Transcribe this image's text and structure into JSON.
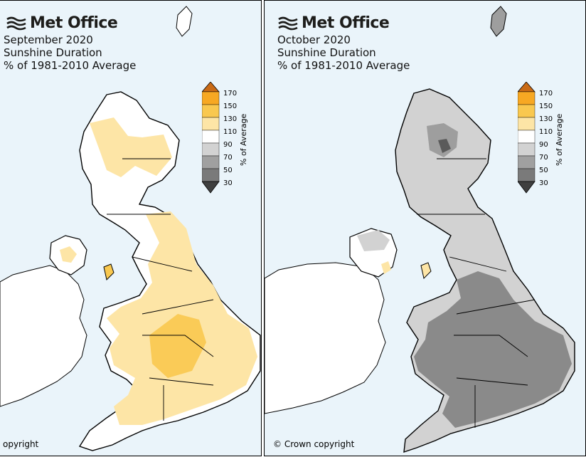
{
  "brand": "Met Office",
  "colors": {
    "sea": "#eaf4fa",
    "land_left_base": "#ffffff",
    "land_right_base": "#cfcfcf",
    "outline": "#000000",
    "anomaly_low_1": "#fdedb9",
    "anomaly_low_2": "#fbd78a",
    "anomaly_high_1": "#9e9e9e",
    "anomaly_high_2": "#6e6e6e"
  },
  "maps": [
    {
      "id": "left",
      "title": "September 2020",
      "subtitle": "Sunshine Duration",
      "caption": "% of 1981-2010 Average",
      "copyright": "opyright"
    },
    {
      "id": "right",
      "title": "October 2020",
      "subtitle": "Sunshine Duration",
      "caption": "% of 1981-2010 Average",
      "copyright": "© Crown copyright"
    }
  ],
  "legend": {
    "label": "% of Average",
    "ticks": [
      "170",
      "150",
      "130",
      "110",
      "90",
      "70",
      "50",
      "30"
    ],
    "bands": [
      "#e8861f",
      "#f7a823",
      "#f9c84f",
      "#fde5a6",
      "#ffffff",
      "#d2d2d2",
      "#a0a0a0",
      "#7a7a7a",
      "#3f3f3f"
    ]
  },
  "chart_data": [
    {
      "type": "heatmap",
      "title": "September 2020",
      "subtitle": "Sunshine Duration",
      "units": "% of 1981-2010 Average",
      "color_scale_ticks": [
        170,
        150,
        130,
        110,
        90,
        70,
        50,
        30
      ]
    },
    {
      "type": "heatmap",
      "title": "October 2020",
      "subtitle": "Sunshine Duration",
      "units": "% of 1981-2010 Average",
      "color_scale_ticks": [
        170,
        150,
        130,
        110,
        90,
        70,
        50,
        30
      ]
    }
  ]
}
